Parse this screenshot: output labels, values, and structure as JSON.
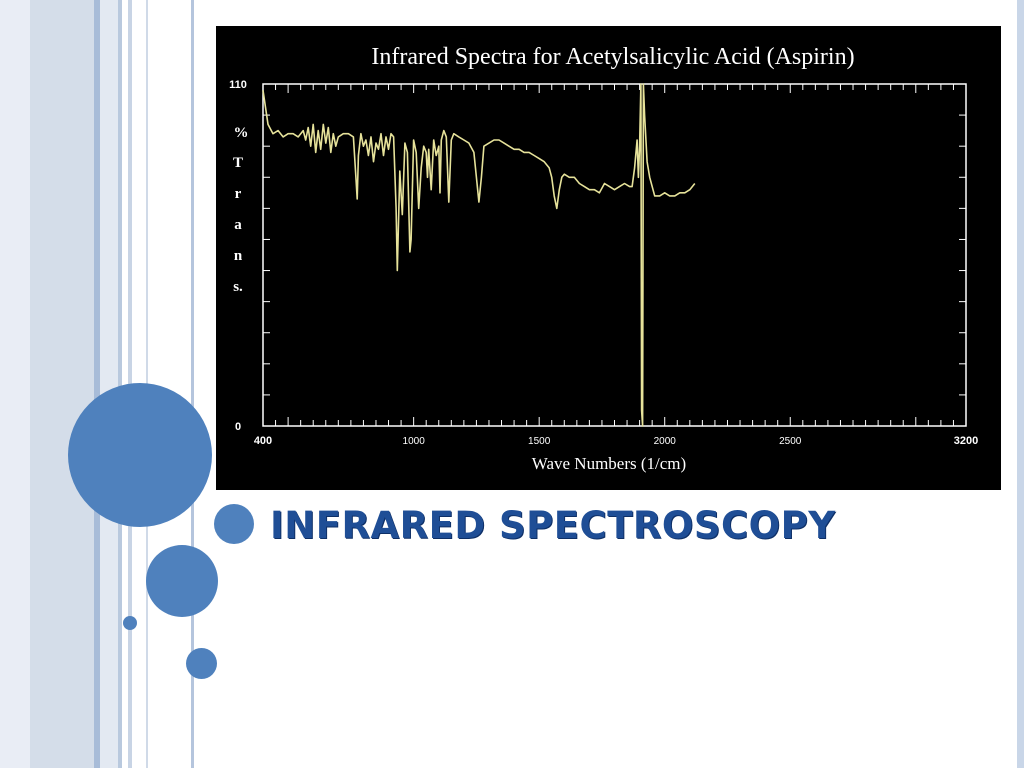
{
  "slide": {
    "title": "INFRARED SPECTROSCOPY",
    "accent_color": "#4f81bd",
    "title_color": "#1f4e96"
  },
  "chart_data": {
    "type": "line",
    "title": "Infrared Spectra for Acetylsalicylic Acid (Aspirin)",
    "xlabel": "Wave Numbers (1/cm)",
    "ylabel_top": "%",
    "ylabel_letters": [
      "T",
      "r",
      "a",
      "n",
      "s."
    ],
    "xlim": [
      400,
      3200
    ],
    "ylim": [
      0,
      110
    ],
    "x_ticks": [
      {
        "value": 400,
        "label": "400",
        "bold": true
      },
      {
        "value": 1000,
        "label": "1000",
        "bold": false
      },
      {
        "value": 1500,
        "label": "1500",
        "bold": false
      },
      {
        "value": 2000,
        "label": "2000",
        "bold": false
      },
      {
        "value": 2500,
        "label": "2500",
        "bold": false
      },
      {
        "value": 3200,
        "label": "3200",
        "bold": true
      }
    ],
    "y_ticks": [
      {
        "value": 110,
        "label": "110"
      },
      {
        "value": 0,
        "label": "0"
      }
    ],
    "background": "#000000",
    "line_color": "#e6e29a",
    "grid": false,
    "series": [
      {
        "values": [
          [
            400,
            108
          ],
          [
            420,
            97
          ],
          [
            440,
            94
          ],
          [
            460,
            95
          ],
          [
            480,
            93
          ],
          [
            500,
            94
          ],
          [
            520,
            94
          ],
          [
            540,
            93
          ],
          [
            560,
            95
          ],
          [
            570,
            92
          ],
          [
            580,
            96
          ],
          [
            590,
            90
          ],
          [
            600,
            97
          ],
          [
            610,
            88
          ],
          [
            620,
            95
          ],
          [
            630,
            89
          ],
          [
            640,
            97
          ],
          [
            650,
            91
          ],
          [
            660,
            96
          ],
          [
            670,
            88
          ],
          [
            680,
            94
          ],
          [
            690,
            90
          ],
          [
            700,
            93
          ],
          [
            720,
            94
          ],
          [
            740,
            94
          ],
          [
            760,
            93
          ],
          [
            770,
            80
          ],
          [
            775,
            73
          ],
          [
            780,
            87
          ],
          [
            790,
            94
          ],
          [
            800,
            90
          ],
          [
            810,
            92
          ],
          [
            820,
            87
          ],
          [
            830,
            93
          ],
          [
            840,
            85
          ],
          [
            850,
            91
          ],
          [
            860,
            89
          ],
          [
            870,
            94
          ],
          [
            880,
            87
          ],
          [
            890,
            93
          ],
          [
            900,
            89
          ],
          [
            910,
            94
          ],
          [
            920,
            93
          ],
          [
            930,
            70
          ],
          [
            935,
            50
          ],
          [
            945,
            82
          ],
          [
            955,
            68
          ],
          [
            965,
            91
          ],
          [
            975,
            88
          ],
          [
            985,
            56
          ],
          [
            990,
            60
          ],
          [
            1000,
            92
          ],
          [
            1010,
            88
          ],
          [
            1020,
            70
          ],
          [
            1030,
            83
          ],
          [
            1040,
            90
          ],
          [
            1050,
            88
          ],
          [
            1055,
            80
          ],
          [
            1060,
            89
          ],
          [
            1070,
            76
          ],
          [
            1080,
            92
          ],
          [
            1090,
            87
          ],
          [
            1100,
            90
          ],
          [
            1105,
            75
          ],
          [
            1110,
            92
          ],
          [
            1120,
            95
          ],
          [
            1130,
            93
          ],
          [
            1140,
            72
          ],
          [
            1150,
            92
          ],
          [
            1160,
            94
          ],
          [
            1180,
            93
          ],
          [
            1200,
            92
          ],
          [
            1220,
            91
          ],
          [
            1240,
            88
          ],
          [
            1260,
            72
          ],
          [
            1270,
            80
          ],
          [
            1280,
            90
          ],
          [
            1300,
            91
          ],
          [
            1320,
            92
          ],
          [
            1340,
            92
          ],
          [
            1360,
            91
          ],
          [
            1380,
            90
          ],
          [
            1400,
            89
          ],
          [
            1420,
            89
          ],
          [
            1440,
            88
          ],
          [
            1460,
            88
          ],
          [
            1480,
            87
          ],
          [
            1500,
            86
          ],
          [
            1520,
            85
          ],
          [
            1540,
            83
          ],
          [
            1550,
            80
          ],
          [
            1560,
            74
          ],
          [
            1570,
            70
          ],
          [
            1580,
            76
          ],
          [
            1590,
            80
          ],
          [
            1600,
            81
          ],
          [
            1620,
            80
          ],
          [
            1640,
            80
          ],
          [
            1660,
            78
          ],
          [
            1680,
            77
          ],
          [
            1700,
            76
          ],
          [
            1720,
            76
          ],
          [
            1740,
            75
          ],
          [
            1760,
            78
          ],
          [
            1780,
            77
          ],
          [
            1800,
            76
          ],
          [
            1820,
            77
          ],
          [
            1840,
            78
          ],
          [
            1860,
            77
          ],
          [
            1870,
            77
          ],
          [
            1880,
            83
          ],
          [
            1890,
            92
          ],
          [
            1895,
            80
          ],
          [
            1900,
            90
          ],
          [
            1905,
            110
          ],
          [
            1908,
            5
          ],
          [
            1912,
            0
          ],
          [
            1915,
            110
          ],
          [
            1920,
            100
          ],
          [
            1930,
            85
          ],
          [
            1940,
            80
          ],
          [
            1960,
            74
          ],
          [
            1980,
            74
          ],
          [
            2000,
            75
          ],
          [
            2020,
            74
          ],
          [
            2040,
            74
          ],
          [
            2060,
            75
          ],
          [
            2080,
            75
          ],
          [
            2100,
            76
          ],
          [
            2120,
            78
          ]
        ]
      }
    ]
  }
}
